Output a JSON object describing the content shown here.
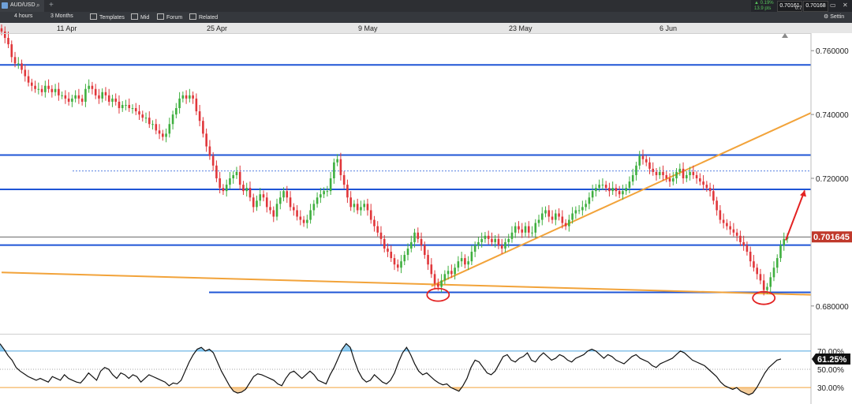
{
  "header": {
    "symbol": "AUD/USD",
    "search_icon": "search-icon",
    "add_tab": "+",
    "quote": {
      "change_pct": "▲ 0.19%",
      "change_pts": "13.9 pts",
      "bid": "0.70161",
      "ask": "0.70168",
      "spread": "0.7",
      "maximize": "▭",
      "close": "✕"
    }
  },
  "toolbar": {
    "interval": "4 hours",
    "range": "3 Months",
    "templates": "Templates",
    "price_type": "Mid",
    "forum": "Forum",
    "related": "Related",
    "settings": "Settin"
  },
  "chart_data": {
    "type": "candlestick",
    "x_ticks": [
      "11 Apr",
      "25 Apr",
      "9 May",
      "23 May",
      "6 Jun"
    ],
    "y_ticks": [
      "0.760000",
      "0.740000",
      "0.720000",
      "0.680000"
    ],
    "ylim": [
      0.675,
      0.765
    ],
    "close_path": [
      0.766,
      0.764,
      0.762,
      0.758,
      0.756,
      0.756,
      0.754,
      0.752,
      0.75,
      0.749,
      0.748,
      0.748,
      0.747,
      0.749,
      0.748,
      0.747,
      0.748,
      0.746,
      0.746,
      0.745,
      0.744,
      0.745,
      0.746,
      0.745,
      0.744,
      0.748,
      0.749,
      0.748,
      0.746,
      0.745,
      0.747,
      0.746,
      0.744,
      0.745,
      0.744,
      0.742,
      0.743,
      0.743,
      0.742,
      0.742,
      0.741,
      0.74,
      0.739,
      0.739,
      0.737,
      0.737,
      0.735,
      0.734,
      0.733,
      0.734,
      0.737,
      0.74,
      0.742,
      0.745,
      0.746,
      0.745,
      0.746,
      0.745,
      0.741,
      0.738,
      0.734,
      0.73,
      0.727,
      0.724,
      0.72,
      0.717,
      0.716,
      0.718,
      0.72,
      0.721,
      0.722,
      0.718,
      0.716,
      0.717,
      0.714,
      0.711,
      0.713,
      0.715,
      0.714,
      0.711,
      0.71,
      0.708,
      0.712,
      0.714,
      0.716,
      0.714,
      0.711,
      0.71,
      0.708,
      0.707,
      0.706,
      0.707,
      0.71,
      0.712,
      0.714,
      0.715,
      0.716,
      0.716,
      0.72,
      0.725,
      0.726,
      0.721,
      0.718,
      0.714,
      0.711,
      0.712,
      0.71,
      0.711,
      0.712,
      0.71,
      0.707,
      0.705,
      0.703,
      0.701,
      0.698,
      0.697,
      0.695,
      0.693,
      0.692,
      0.694,
      0.696,
      0.698,
      0.7,
      0.703,
      0.701,
      0.699,
      0.696,
      0.693,
      0.69,
      0.687,
      0.686,
      0.688,
      0.69,
      0.691,
      0.69,
      0.692,
      0.694,
      0.695,
      0.693,
      0.694,
      0.697,
      0.699,
      0.7,
      0.701,
      0.702,
      0.701,
      0.7,
      0.701,
      0.699,
      0.698,
      0.7,
      0.701,
      0.703,
      0.705,
      0.704,
      0.703,
      0.705,
      0.703,
      0.703,
      0.706,
      0.707,
      0.709,
      0.71,
      0.708,
      0.707,
      0.709,
      0.708,
      0.706,
      0.705,
      0.707,
      0.709,
      0.71,
      0.71,
      0.711,
      0.712,
      0.714,
      0.716,
      0.717,
      0.718,
      0.718,
      0.717,
      0.716,
      0.717,
      0.716,
      0.715,
      0.716,
      0.717,
      0.719,
      0.721,
      0.724,
      0.727,
      0.726,
      0.725,
      0.723,
      0.722,
      0.721,
      0.722,
      0.721,
      0.72,
      0.719,
      0.72,
      0.722,
      0.723,
      0.72,
      0.721,
      0.722,
      0.721,
      0.72,
      0.719,
      0.718,
      0.717,
      0.716,
      0.713,
      0.71,
      0.707,
      0.706,
      0.705,
      0.704,
      0.703,
      0.702,
      0.7,
      0.699,
      0.697,
      0.694,
      0.692,
      0.69,
      0.688,
      0.685,
      0.686,
      0.689,
      0.692,
      0.695,
      0.699,
      0.701,
      0.7016
    ],
    "horizontal_levels": [
      {
        "label": "0.755553",
        "value": 0.755553
      },
      {
        "label": "0.727280",
        "value": 0.72728
      },
      {
        "label": "0.722287",
        "value": 0.722287,
        "style": "dashed"
      },
      {
        "label": "0.716542",
        "value": 0.716542
      },
      {
        "label": "0.699083",
        "value": 0.699083
      },
      {
        "label": "0.684265",
        "value": 0.684265
      }
    ],
    "current_price": {
      "label": "0.701645",
      "value": 0.701645
    },
    "trendlines": [
      {
        "name": "orange-support-long",
        "from": {
          "x_index": 0,
          "value": 0.6905
        },
        "to": {
          "x_index": 240,
          "value": 0.6835
        }
      },
      {
        "name": "orange-rising",
        "from": {
          "x_index": 128,
          "value": 0.6862
        },
        "to": {
          "x_index": 240,
          "value": 0.7405
        }
      }
    ],
    "indicator": {
      "name": "RSI",
      "y_ticks": [
        "70.00%",
        "50.00%",
        "30.00%"
      ],
      "overbought": 70,
      "oversold": 30,
      "current": {
        "label": "61.25%",
        "value": 61.25
      },
      "values": [
        78,
        72,
        65,
        60,
        52,
        48,
        45,
        42,
        40,
        38,
        40,
        38,
        36,
        42,
        40,
        38,
        44,
        40,
        38,
        36,
        35,
        40,
        46,
        42,
        38,
        48,
        52,
        50,
        44,
        40,
        46,
        44,
        40,
        44,
        42,
        36,
        40,
        44,
        42,
        40,
        38,
        36,
        32,
        35,
        34,
        38,
        48,
        58,
        66,
        72,
        74,
        70,
        72,
        68,
        58,
        48,
        40,
        32,
        26,
        24,
        25,
        28,
        35,
        42,
        45,
        44,
        42,
        40,
        38,
        34,
        32,
        40,
        46,
        48,
        44,
        40,
        44,
        48,
        44,
        38,
        36,
        34,
        44,
        52,
        62,
        72,
        78,
        74,
        60,
        48,
        40,
        36,
        38,
        44,
        40,
        36,
        34,
        38,
        46,
        58,
        68,
        74,
        66,
        56,
        48,
        44,
        46,
        42,
        38,
        35,
        33,
        34,
        30,
        28,
        26,
        32,
        40,
        52,
        60,
        58,
        52,
        46,
        44,
        48,
        56,
        64,
        66,
        60,
        58,
        62,
        64,
        68,
        60,
        58,
        64,
        68,
        64,
        60,
        62,
        66,
        64,
        60,
        58,
        62,
        64,
        66,
        70,
        72,
        70,
        66,
        62,
        66,
        64,
        60,
        58,
        56,
        60,
        64,
        66,
        62,
        60,
        58,
        54,
        52,
        56,
        58,
        60,
        62,
        66,
        70,
        68,
        64,
        60,
        58,
        56,
        54,
        50,
        46,
        42,
        36,
        32,
        30,
        28,
        30,
        26,
        24,
        22,
        24,
        30,
        38,
        46,
        52,
        56,
        60,
        61.25
      ]
    },
    "annotations": [
      {
        "type": "circle",
        "label": "low-circle-1"
      },
      {
        "type": "circle",
        "label": "low-circle-2"
      },
      {
        "type": "arrow",
        "label": "projection-arrow",
        "target": 0.7165
      }
    ],
    "colors": {
      "up": "#3faf3f",
      "down": "#e0363a",
      "level": "#1f55d6",
      "trend": "#f2a33a",
      "rsi_ob": "#4aa3df",
      "rsi_os": "#f2a33a",
      "price_tag": "#c0392b"
    }
  }
}
